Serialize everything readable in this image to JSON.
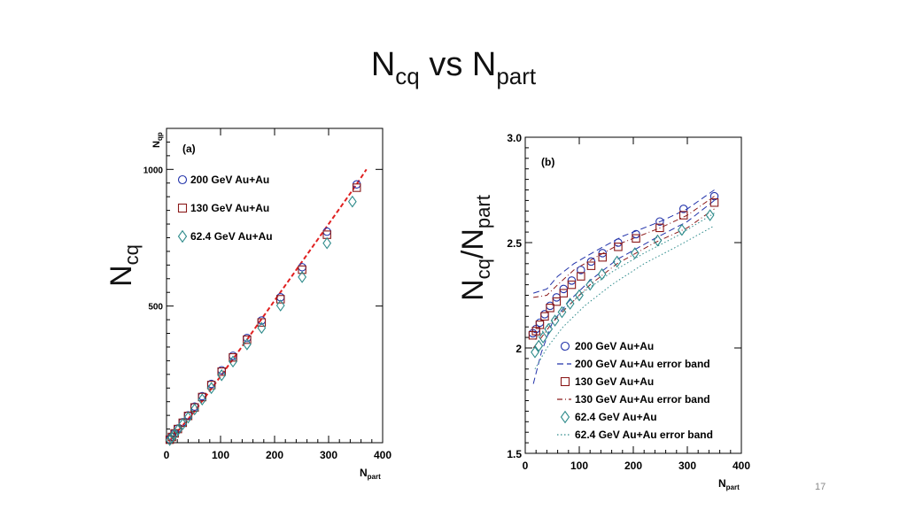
{
  "slide": {
    "title_main": "N",
    "title_sub1": "cq",
    "title_mid": " vs N",
    "title_sub2": "part",
    "page_number": "17"
  },
  "side_labels": {
    "a_main": "N",
    "a_sub": "cq",
    "b_main1": "N",
    "b_sub1": "cq",
    "b_mid": "/N",
    "b_sub2": "part"
  },
  "colors": {
    "blue": "#2233aa",
    "red": "#8b1a1a",
    "teal": "#2e8b8b",
    "fit": "#e02020"
  },
  "chart_data": [
    {
      "type": "scatter",
      "panel_label": "(a)",
      "ylabel_main": "N",
      "ylabel_sub": "qp",
      "xlabel_main": "N",
      "xlabel_sub": "part",
      "xlim": [
        0,
        400
      ],
      "ylim": [
        0,
        1150
      ],
      "xticks": [
        "0",
        "100",
        "200",
        "300",
        "400"
      ],
      "yticks": [
        "500",
        "1000"
      ],
      "series": [
        {
          "name": "200 GeV Au+Au",
          "marker": "circle",
          "x": [
            6,
            10,
            15,
            21,
            30,
            40,
            52,
            66,
            83,
            102,
            123,
            149,
            176,
            211,
            251,
            297,
            352
          ],
          "y": [
            12,
            22,
            35,
            52,
            75,
            100,
            132,
            170,
            215,
            265,
            318,
            383,
            447,
            532,
            642,
            772,
            945
          ]
        },
        {
          "name": "130 GeV Au+Au",
          "marker": "square",
          "x": [
            6,
            10,
            15,
            21,
            30,
            40,
            52,
            66,
            83,
            102,
            123,
            149,
            176,
            211,
            251,
            297,
            352
          ],
          "y": [
            11,
            21,
            34,
            50,
            73,
            98,
            129,
            167,
            211,
            260,
            312,
            377,
            440,
            525,
            633,
            761,
            933
          ]
        },
        {
          "name": "62.4 GeV Au+Au",
          "marker": "diamond",
          "x": [
            6,
            10,
            15,
            21,
            30,
            40,
            52,
            66,
            83,
            102,
            123,
            149,
            176,
            211,
            251,
            297,
            344
          ],
          "y": [
            10,
            19,
            31,
            46,
            68,
            92,
            122,
            158,
            200,
            247,
            297,
            360,
            420,
            502,
            606,
            730,
            882
          ]
        }
      ],
      "fit_line": {
        "x": [
          5,
          50,
          100,
          150,
          200,
          250,
          300,
          350,
          370
        ],
        "y": [
          5,
          110,
          243,
          380,
          520,
          660,
          800,
          940,
          1000
        ]
      }
    },
    {
      "type": "scatter",
      "panel_label": "(b)",
      "xlabel_main": "N",
      "xlabel_sub": "part",
      "xlim": [
        0,
        400
      ],
      "ylim": [
        1.5,
        3.0
      ],
      "xticks": [
        "0",
        "100",
        "200",
        "300",
        "400"
      ],
      "yticks": [
        "1.5",
        "2",
        "2.5",
        "3.0"
      ],
      "series": [
        {
          "name": "200 GeV Au+Au",
          "marker": "circle",
          "x": [
            14,
            20,
            27,
            36,
            46,
            58,
            71,
            86,
            103,
            122,
            143,
            172,
            205,
            249,
            293,
            350
          ],
          "y": [
            2.07,
            2.09,
            2.12,
            2.16,
            2.2,
            2.24,
            2.28,
            2.32,
            2.37,
            2.41,
            2.45,
            2.5,
            2.54,
            2.6,
            2.66,
            2.72
          ]
        },
        {
          "name": "130 GeV Au+Au",
          "marker": "square",
          "x": [
            14,
            20,
            27,
            36,
            46,
            58,
            71,
            86,
            103,
            122,
            143,
            172,
            205,
            249,
            293,
            350
          ],
          "y": [
            2.06,
            2.08,
            2.11,
            2.15,
            2.19,
            2.22,
            2.26,
            2.3,
            2.34,
            2.39,
            2.43,
            2.48,
            2.52,
            2.57,
            2.63,
            2.69
          ]
        },
        {
          "name": "62.4 GeV Au+Au",
          "marker": "diamond",
          "x": [
            18,
            25,
            33,
            43,
            55,
            68,
            83,
            100,
            120,
            142,
            170,
            203,
            245,
            290,
            342
          ],
          "y": [
            1.98,
            2.01,
            2.05,
            2.09,
            2.13,
            2.17,
            2.21,
            2.25,
            2.3,
            2.35,
            2.41,
            2.45,
            2.51,
            2.56,
            2.63
          ]
        }
      ],
      "bands": [
        {
          "name": "200 GeV Au+Au error band",
          "style": "dashed",
          "color": "blue",
          "upper": {
            "x": [
              15,
              40,
              60,
              90,
              130,
              180,
              250,
              300,
              350
            ],
            "y": [
              2.26,
              2.28,
              2.34,
              2.4,
              2.46,
              2.53,
              2.6,
              2.66,
              2.75
            ]
          },
          "lower": {
            "x": [
              15,
              30,
              50,
              80,
              120,
              170,
              240,
              300,
              350
            ],
            "y": [
              1.83,
              1.98,
              2.12,
              2.22,
              2.32,
              2.42,
              2.52,
              2.6,
              2.7
            ]
          }
        },
        {
          "name": "130 GeV Au+Au error band",
          "style": "dashdot",
          "color": "red",
          "upper": {
            "x": [
              15,
              40,
              60,
              90,
              130,
              180,
              250,
              300,
              350
            ],
            "y": [
              2.24,
              2.25,
              2.3,
              2.37,
              2.43,
              2.5,
              2.57,
              2.63,
              2.72
            ]
          },
          "lower": {
            "x": [
              15,
              30,
              50,
              80,
              120,
              170,
              240,
              300,
              350
            ],
            "y": [
              2.0,
              2.05,
              2.12,
              2.2,
              2.3,
              2.4,
              2.5,
              2.57,
              2.66
            ]
          }
        },
        {
          "name": "62.4 GeV Au+Au error band",
          "style": "dotted",
          "color": "teal",
          "upper": {
            "x": [
              18,
              40,
              70,
              110,
              160,
              220,
              280,
              350
            ],
            "y": [
              2.04,
              2.1,
              2.18,
              2.27,
              2.36,
              2.45,
              2.53,
              2.64
            ]
          },
          "lower": {
            "x": [
              18,
              40,
              70,
              110,
              160,
              220,
              280,
              350
            ],
            "y": [
              1.9,
              2.0,
              2.1,
              2.2,
              2.3,
              2.4,
              2.48,
              2.58
            ]
          }
        }
      ]
    }
  ]
}
